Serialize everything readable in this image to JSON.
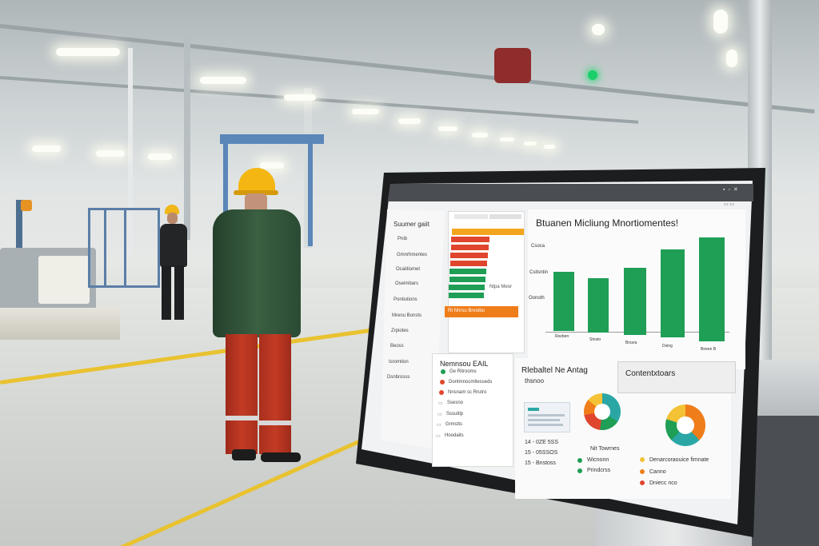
{
  "dashboard": {
    "window_title": "",
    "sidebar": {
      "heading": "Suumer gaiit",
      "items": [
        "Pnib",
        "Gmnrhmentes",
        "Ocaiitiomet",
        "Oseimbars",
        "Pontiutions",
        "Mrenu Bonsts",
        "Zrpiotes",
        "Beoss",
        "Isromtion",
        "Dsnbrosss"
      ]
    },
    "status_panel": {
      "footer_label": "Rt Nhrsu Bnroibo",
      "side_label": "Ntpa Meor"
    },
    "chart": {
      "title": "Btuanen Micliung Mnortiomentes!",
      "y_labels": [
        "Csoca",
        "Csitsntin",
        "Oonoth"
      ],
      "x_labels": [
        "Rezben",
        "Stnsto",
        "Brssra",
        "Dsing",
        "Bneen B"
      ]
    },
    "notices_panel": {
      "title": "Nemnsou EAIL",
      "items": [
        "Ge Ritrooms",
        "Dontmnocmtlesseds",
        "Nnsnam sc Rrutro",
        "Ssesno",
        "Sssutilp",
        "Grmstts",
        "Hoodaits"
      ]
    },
    "bottom_panel": {
      "title": "Rlebaltel Ne Antag",
      "subtitle": "thsnoo",
      "legend_left": [
        "14 - 0ZE 5SS",
        "15 - 05SSOS",
        "15 - Bnstoss"
      ],
      "legend_mid_title": "Nit Towrnes",
      "legend_mid": [
        "Wicnonn",
        "Prindcrss"
      ],
      "legend_right": [
        "Denarcoraouice fimnate",
        "Canno",
        "Dniecc nco"
      ]
    },
    "right_panel_tab": "Contentxtoars",
    "colors": {
      "green": "#1f9e56",
      "red": "#e0452e",
      "orange": "#ef7d1a",
      "teal": "#2aa7a5",
      "yellow": "#f3c235"
    }
  }
}
